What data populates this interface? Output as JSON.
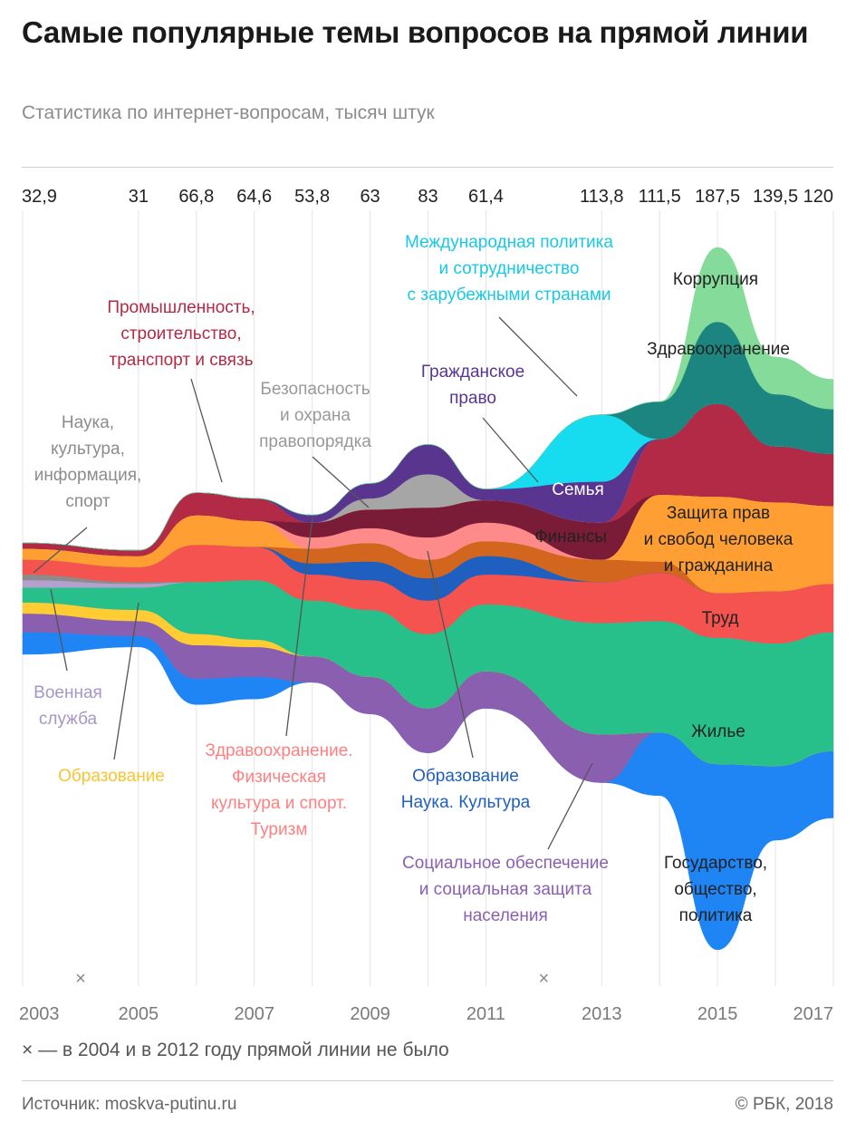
{
  "title": "Самые популярные темы вопросов на прямой линии",
  "subtitle": "Статистика по интернет-вопросам, тысяч штук",
  "footnote": "× — в 2004 и в 2012 году прямой линии не было",
  "source": "Источник: moskva-putinu.ru",
  "copyright": "© РБК, 2018",
  "chart_data": {
    "type": "area",
    "style": "streamgraph",
    "unit": "тысяч штук",
    "x": [
      2003,
      2005,
      2006,
      2007,
      2008,
      2009,
      2010,
      2011,
      2013,
      2014,
      2015,
      2016,
      2017
    ],
    "x_tick_labels": [
      "2003",
      "2005",
      "2007",
      "2009",
      "2011",
      "2013",
      "2015",
      "2017"
    ],
    "missing_years_marker": "×",
    "missing_years": [
      2004,
      2012
    ],
    "totals": [
      {
        "x": 2003,
        "label": "32,9"
      },
      {
        "x": 2005,
        "label": "31"
      },
      {
        "x": 2006,
        "label": "66,8"
      },
      {
        "x": 2007,
        "label": "64,6"
      },
      {
        "x": 2008,
        "label": "53,8"
      },
      {
        "x": 2009,
        "label": "63"
      },
      {
        "x": 2010,
        "label": "83"
      },
      {
        "x": 2011,
        "label": "61,4"
      },
      {
        "x": 2013,
        "label": "113,8"
      },
      {
        "x": 2014,
        "label": "111,5"
      },
      {
        "x": 2015,
        "label": "187,5"
      },
      {
        "x": 2016,
        "label": "139,5"
      },
      {
        "x": 2017,
        "label": "120"
      }
    ],
    "series": [
      {
        "name": "Государство, общество, политика",
        "color": "#1f85f5",
        "values": [
          6,
          3,
          7,
          6,
          0,
          0,
          0,
          0,
          0,
          17,
          50,
          20,
          18
        ]
      },
      {
        "name": "Социальное обеспечение и социальная защита населения",
        "color": "#8a5fb0",
        "values": [
          5,
          4,
          9,
          8,
          7,
          10,
          12,
          10,
          13,
          0,
          0,
          0,
          0
        ]
      },
      {
        "name": "Образование",
        "color": "#ffcc33",
        "values": [
          3,
          3,
          3,
          2,
          0,
          0,
          0,
          0,
          0,
          0,
          0,
          0,
          0
        ]
      },
      {
        "name": "Жилье",
        "color": "#27c08a",
        "values": [
          4,
          6,
          14,
          16,
          15,
          18,
          20,
          18,
          30,
          30,
          34,
          33,
          32
        ]
      },
      {
        "name": "Военная служба",
        "color": "#b4a0cf",
        "values": [
          2,
          1,
          0,
          0,
          0,
          0,
          0,
          0,
          0,
          0,
          0,
          0,
          0
        ]
      },
      {
        "name": "Наука, культура, информация, спорт",
        "color": "#8c8c8c",
        "values": [
          1.5,
          0.5,
          0,
          0,
          0,
          0,
          0,
          0,
          0,
          0,
          0,
          0,
          0
        ]
      },
      {
        "name": "Труд",
        "color": "#f5534f",
        "values": [
          4,
          4,
          10,
          9,
          7,
          8,
          9,
          8,
          11,
          13,
          12,
          14,
          13
        ]
      },
      {
        "name": "Образование Наука. Культура",
        "color": "#1f5fbf",
        "values": [
          0,
          0,
          0,
          0,
          3,
          5,
          6,
          5,
          0,
          0,
          0,
          0,
          0
        ]
      },
      {
        "name": "Финансы",
        "color": "#d2661f",
        "values": [
          0,
          0,
          0,
          0,
          4,
          5,
          5,
          4,
          6,
          3,
          0,
          0,
          0
        ]
      },
      {
        "name": "Защита прав и свобод человека и гражданина",
        "color": "#ff9f33",
        "values": [
          3,
          3,
          8,
          7,
          0,
          0,
          0,
          0,
          0,
          18,
          26,
          24,
          21
        ]
      },
      {
        "name": "Здравоохранение. Физическая культура и спорт. Туризм",
        "color": "#ff8a8a",
        "values": [
          0,
          0,
          0,
          0,
          3,
          4,
          6,
          5,
          0,
          0,
          0,
          0,
          0
        ]
      },
      {
        "name": "Семья",
        "color": "#7a1c38",
        "values": [
          0,
          0,
          0,
          0,
          4,
          5,
          8,
          6,
          10,
          0,
          0,
          0,
          0
        ]
      },
      {
        "name": "Промышленность, строительство, транспорт и связь",
        "color": "#b22a45",
        "values": [
          1.5,
          1.5,
          6,
          6,
          0,
          0,
          0,
          0,
          0,
          15,
          25,
          15,
          14
        ]
      },
      {
        "name": "Безопасность и охрана правопорядка",
        "color": "#a6a6a6",
        "values": [
          0,
          0,
          0,
          0,
          0,
          3,
          9,
          0,
          0,
          0,
          0,
          0,
          0
        ]
      },
      {
        "name": "Гражданское право",
        "color": "#5a3590",
        "values": [
          0,
          0,
          0,
          0,
          2,
          4,
          8,
          3,
          11,
          0,
          0,
          0,
          0
        ]
      },
      {
        "name": "Международная политика и сотрудничество с зарубежными странами",
        "color": "#17dbef",
        "values": [
          0,
          0,
          0,
          0,
          0,
          0,
          0,
          0,
          18,
          0,
          0,
          0,
          0
        ]
      },
      {
        "name": "Здравоохранение",
        "color": "#1c8580",
        "values": [
          0,
          0,
          0,
          0,
          0,
          0,
          0,
          0,
          0,
          10,
          22,
          14,
          12
        ]
      },
      {
        "name": "Коррупция",
        "color": "#85db9a",
        "values": [
          0,
          0,
          0,
          0,
          0,
          0,
          0,
          0,
          0,
          0,
          20,
          10,
          8
        ]
      }
    ]
  }
}
